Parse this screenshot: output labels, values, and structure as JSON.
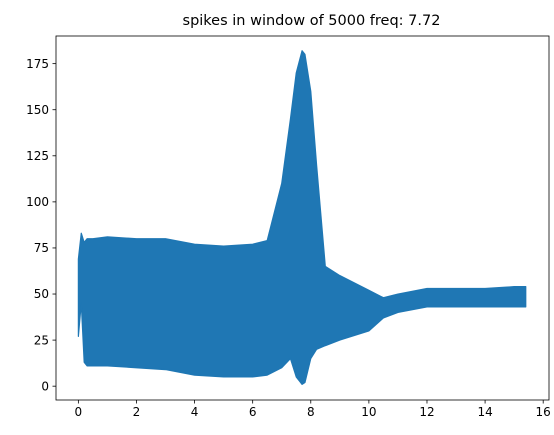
{
  "chart_data": {
    "type": "area",
    "title": "spikes in window of 5000 freq: 7.72",
    "xlabel": "",
    "ylabel": "",
    "xlim": [
      -0.77,
      16.2
    ],
    "ylim": [
      -7.5,
      190
    ],
    "x_ticks": [
      0,
      2,
      4,
      6,
      8,
      10,
      12,
      14,
      16
    ],
    "y_ticks": [
      0,
      25,
      50,
      75,
      100,
      125,
      150,
      175
    ],
    "x_tick_labels": [
      "0",
      "2",
      "4",
      "6",
      "8",
      "10",
      "12",
      "14",
      "16"
    ],
    "y_tick_labels": [
      "0",
      "25",
      "50",
      "75",
      "100",
      "125",
      "150",
      "175"
    ],
    "grid": false,
    "legend": "none",
    "series": [
      {
        "color": "#1f77b4",
        "x": [
          0.0,
          0.1,
          0.2,
          0.3,
          0.5,
          1.0,
          2.0,
          3.0,
          4.0,
          5.0,
          6.0,
          6.5,
          7.0,
          7.3,
          7.5,
          7.7,
          7.8,
          8.0,
          8.2,
          8.5,
          9.0,
          10.0,
          10.5,
          11.0,
          12.0,
          13.0,
          14.0,
          15.0,
          15.4
        ],
        "upper": [
          69,
          83,
          78,
          80,
          80,
          81,
          80,
          80,
          77,
          76,
          77,
          79,
          110,
          145,
          170,
          182,
          180,
          160,
          120,
          65,
          60,
          52,
          48,
          50,
          53,
          53,
          53,
          54,
          54
        ],
        "lower": [
          27,
          45,
          13,
          11,
          11,
          11,
          10,
          9,
          6,
          5,
          5,
          6,
          10,
          15,
          5,
          1,
          2,
          15,
          20,
          22,
          25,
          30,
          37,
          40,
          43,
          43,
          43,
          43,
          43
        ]
      }
    ]
  }
}
